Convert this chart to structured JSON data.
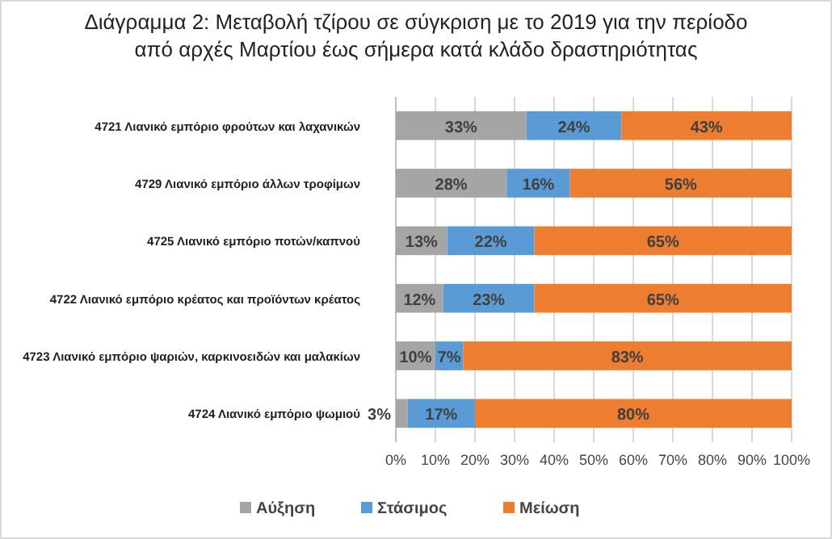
{
  "chart_data": {
    "type": "bar",
    "orientation": "horizontal",
    "stacked": true,
    "title": "Διάγραμμα 2: Μεταβολή τζίρου σε σύγκριση με το 2019 για την περίοδο\nαπό αρχές Μαρτίου έως σήμερα κατά κλάδο δραστηριότητας",
    "categories": [
      "4721 Λιανικό εμπόριο φρούτων και λαχανικών",
      "4729 Λιανικό εμπόριο άλλων τροφίμων",
      "4725 Λιανικό εμπόριο ποτών/καπνού",
      "4722 Λιανικό εμπόριο κρέατος και προϊόντων κρέατος",
      "4723 Λιανικό εμπόριο ψαριών, καρκινοειδών και μαλακίων",
      "4724 Λιανικό εμπόριο ψωμιού"
    ],
    "series": [
      {
        "name": "Αύξηση",
        "color": "#a5a5a5",
        "values": [
          33,
          28,
          13,
          12,
          10,
          3
        ],
        "value_labels": [
          "33%",
          "28%",
          "13%",
          "12%",
          "10%",
          "3%"
        ]
      },
      {
        "name": "Στάσιμος",
        "color": "#5b9bd5",
        "values": [
          24,
          16,
          22,
          23,
          7,
          17
        ],
        "value_labels": [
          "24%",
          "16%",
          "22%",
          "23%",
          "7%",
          "17%"
        ]
      },
      {
        "name": "Μείωση",
        "color": "#ed7d31",
        "values": [
          43,
          56,
          65,
          65,
          83,
          80
        ],
        "value_labels": [
          "43%",
          "56%",
          "65%",
          "65%",
          "83%",
          "80%"
        ]
      }
    ],
    "xlim": [
      0,
      100
    ],
    "xticks": [
      {
        "value": 0,
        "label": "0%"
      },
      {
        "value": 10,
        "label": "10%"
      },
      {
        "value": 20,
        "label": "20%"
      },
      {
        "value": 30,
        "label": "30%"
      },
      {
        "value": 40,
        "label": "40%"
      },
      {
        "value": 50,
        "label": "50%"
      },
      {
        "value": 60,
        "label": "60%"
      },
      {
        "value": 70,
        "label": "70%"
      },
      {
        "value": 80,
        "label": "80%"
      },
      {
        "value": 90,
        "label": "90%"
      },
      {
        "value": 100,
        "label": "100%"
      }
    ],
    "grid": "x",
    "legend": "bottom"
  }
}
